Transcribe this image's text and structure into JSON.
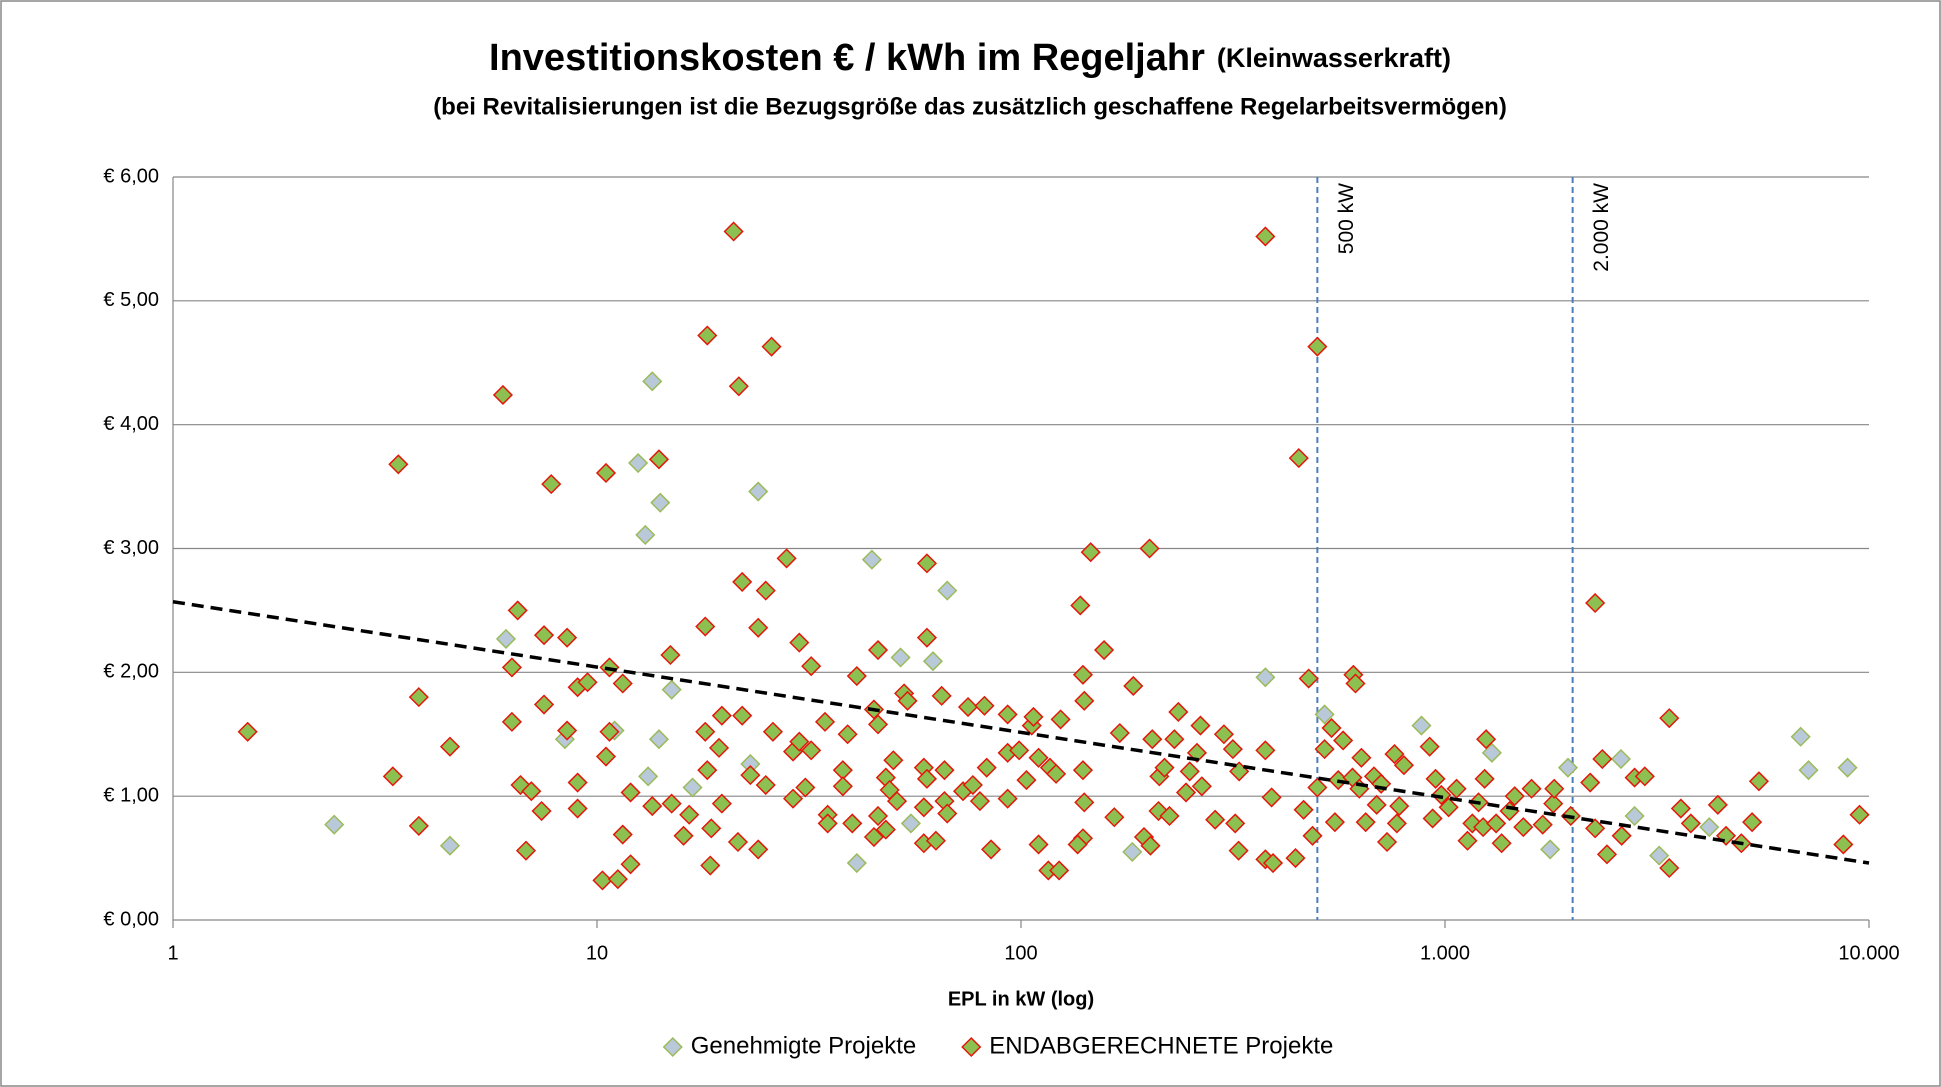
{
  "chart_data": {
    "type": "scatter",
    "title": "Investitionskosten € / kWh im Regeljahr",
    "title_suffix": "(Kleinwasserkraft)",
    "subtitle": "(bei Revitalisierungen ist die Bezugsgröße das zusätzlich geschaffene Regelarbeitsvermögen)",
    "x_label": "EPL in kW (log)",
    "x_log": true,
    "xlim": [
      1,
      10000
    ],
    "xticks": [
      1,
      10,
      100,
      {
        "value": 1000,
        "label": "1.000"
      },
      {
        "value": 10000,
        "label": "10.000"
      }
    ],
    "ylim": [
      0,
      6
    ],
    "yticks": [
      {
        "value": 0,
        "label": "€ 0,00"
      },
      {
        "value": 1,
        "label": "€ 1,00"
      },
      {
        "value": 2,
        "label": "€ 2,00"
      },
      {
        "value": 3,
        "label": "€ 3,00"
      },
      {
        "value": 4,
        "label": "€ 4,00"
      },
      {
        "value": 5,
        "label": "€ 5,00"
      },
      {
        "value": 6,
        "label": "€ 6,00"
      }
    ],
    "grid": true,
    "legend": "bottom",
    "series": [
      {
        "name": "Genehmigte Projekte",
        "color": "#b9c9d9",
        "edge": "#9bbb59",
        "x": [
          2.4,
          4.5,
          6.1,
          13.5,
          12.5,
          13.0,
          14.1,
          24,
          44.5,
          67,
          62,
          52,
          377,
          6900,
          8900,
          7200,
          520,
          880,
          1950,
          2600,
          2800,
          3200,
          4200,
          183,
          41,
          55,
          8.4,
          11,
          15,
          16.8,
          23,
          13.2,
          14,
          1770,
          1290
        ],
        "y": [
          0.77,
          0.6,
          2.27,
          4.35,
          3.69,
          3.11,
          3.37,
          3.46,
          2.91,
          2.66,
          2.09,
          2.12,
          1.96,
          1.48,
          1.23,
          1.21,
          1.66,
          1.57,
          1.23,
          1.3,
          0.84,
          0.52,
          0.75,
          0.55,
          0.46,
          0.78,
          1.46,
          1.53,
          1.86,
          1.07,
          1.26,
          1.16,
          1.46,
          0.57,
          1.35
        ]
      },
      {
        "name": "ENDABGERECHNETE Projekte",
        "color": "#8cc152",
        "edge": "#e3170a",
        "x": [
          1.5,
          3.4,
          3.3,
          3.8,
          3.8,
          4.5,
          6.0,
          6.5,
          6.3,
          6.3,
          6.6,
          7.0,
          6.8,
          7.4,
          7.5,
          7.5,
          7.8,
          8.5,
          8.5,
          9.0,
          9.0,
          9.0,
          9.5,
          10.5,
          10.7,
          10.7,
          10.5,
          10.3,
          11.2,
          11.5,
          11.5,
          12,
          12,
          14,
          13.5,
          14.9,
          15,
          16,
          16.5,
          18,
          18.2,
          18,
          18.2,
          18.5,
          18.6,
          19.4,
          19.7,
          19.7,
          21,
          21.6,
          22,
          22,
          21.5,
          23,
          24,
          24,
          25,
          25,
          25.8,
          26,
          28,
          29,
          30,
          30,
          29,
          31,
          32,
          32,
          34.5,
          35,
          35,
          38,
          38,
          40,
          39,
          41,
          45,
          46,
          46,
          45,
          46,
          48,
          50,
          49,
          48,
          51,
          53,
          54,
          60,
          60,
          59,
          60,
          59,
          59,
          63,
          65,
          66,
          67,
          66,
          75,
          73,
          77,
          80,
          82,
          83,
          85,
          93,
          93,
          93,
          99,
          103,
          106,
          107,
          110,
          110,
          116,
          123,
          117,
          121,
          124,
          138,
          140,
          141,
          140,
          141,
          140,
          136,
          146,
          157,
          166,
          171,
          184,
          201,
          204,
          195,
          202,
          212,
          211,
          218,
          224,
          230,
          235,
          245,
          250,
          260,
          265,
          267,
          287,
          301,
          320,
          316,
          326,
          327,
          377,
          377,
          377,
          390,
          393,
          444,
          452,
          477,
          500,
          464,
          487,
          500,
          520,
          540,
          550,
          560,
          575,
          608,
          615,
          605,
          635,
          628,
          650,
          680,
          690,
          707,
          730,
          760,
          780,
          770,
          800,
          920,
          935,
          950,
          980,
          1020,
          1065,
          1130,
          1160,
          1200,
          1240,
          1250,
          1230,
          1320,
          1360,
          1420,
          1460,
          1530,
          1600,
          1700,
          1800,
          1810,
          1980,
          2200,
          2260,
          2350,
          2260,
          2410,
          2610,
          2800,
          2960,
          3380,
          3380,
          3600,
          3800,
          4400,
          4600,
          5000,
          5300,
          5500,
          8700,
          9500
        ],
        "y": [
          1.52,
          3.68,
          1.16,
          1.8,
          0.76,
          1.4,
          4.24,
          2.5,
          2.04,
          1.6,
          1.09,
          1.04,
          0.56,
          0.88,
          2.3,
          1.74,
          3.52,
          2.28,
          1.53,
          1.88,
          0.9,
          1.11,
          1.92,
          3.61,
          2.04,
          1.52,
          1.32,
          0.32,
          0.33,
          1.91,
          0.69,
          1.03,
          0.45,
          3.72,
          0.92,
          2.14,
          0.94,
          0.68,
          0.85,
          2.37,
          4.72,
          1.52,
          1.21,
          0.44,
          0.74,
          1.39,
          1.65,
          0.94,
          5.56,
          4.31,
          2.73,
          1.65,
          0.63,
          1.17,
          2.36,
          0.57,
          1.09,
          2.66,
          4.63,
          1.52,
          2.92,
          1.36,
          2.24,
          1.44,
          0.98,
          1.07,
          2.05,
          1.37,
          1.6,
          0.85,
          0.78,
          1.21,
          1.08,
          0.78,
          1.5,
          1.97,
          1.7,
          2.18,
          1.58,
          0.67,
          0.84,
          1.15,
          1.29,
          1.05,
          0.73,
          0.96,
          1.83,
          1.77,
          2.88,
          2.28,
          1.23,
          1.14,
          0.91,
          0.62,
          0.64,
          1.81,
          0.96,
          0.86,
          1.21,
          1.72,
          1.04,
          1.09,
          0.96,
          1.73,
          1.23,
          0.57,
          1.66,
          1.35,
          0.98,
          1.37,
          1.13,
          1.57,
          1.64,
          1.31,
          0.61,
          0.4,
          0.4,
          1.23,
          1.18,
          1.62,
          2.54,
          1.98,
          1.77,
          1.21,
          0.95,
          0.66,
          0.61,
          2.97,
          2.18,
          0.83,
          1.51,
          1.89,
          3.0,
          1.46,
          0.67,
          0.6,
          1.16,
          0.88,
          1.23,
          0.84,
          1.46,
          1.68,
          1.03,
          1.2,
          1.35,
          1.57,
          1.08,
          0.81,
          1.5,
          0.78,
          1.38,
          0.56,
          1.2,
          5.52,
          1.37,
          0.49,
          0.99,
          0.46,
          0.5,
          3.73,
          1.95,
          4.63,
          0.89,
          0.68,
          1.07,
          1.38,
          1.55,
          0.79,
          1.13,
          1.45,
          1.98,
          1.91,
          1.15,
          1.31,
          1.06,
          0.79,
          1.16,
          0.93,
          1.1,
          0.63,
          1.34,
          0.92,
          0.78,
          1.25,
          1.4,
          0.82,
          1.14,
          1.01,
          0.91,
          1.06,
          0.64,
          0.78,
          0.95,
          1.14,
          1.46,
          0.75,
          0.78,
          0.62,
          0.88,
          1.0,
          0.75,
          1.06,
          0.77,
          0.94,
          1.06,
          0.84,
          1.11,
          2.56,
          1.3,
          0.74,
          0.53,
          0.68,
          1.15,
          1.16,
          1.63,
          0.42,
          0.9,
          0.78,
          0.93,
          0.68,
          0.62,
          0.79,
          1.12,
          0.61,
          0.85
        ]
      }
    ],
    "trendline": {
      "color": "#000000",
      "x": [
        1,
        10000
      ],
      "y": [
        2.57,
        0.46
      ]
    },
    "vlines": [
      {
        "x": 500,
        "label": "500 kW"
      },
      {
        "x": 2000,
        "label": "2.000 kW"
      }
    ],
    "vline_color": "#4a7ebb"
  }
}
